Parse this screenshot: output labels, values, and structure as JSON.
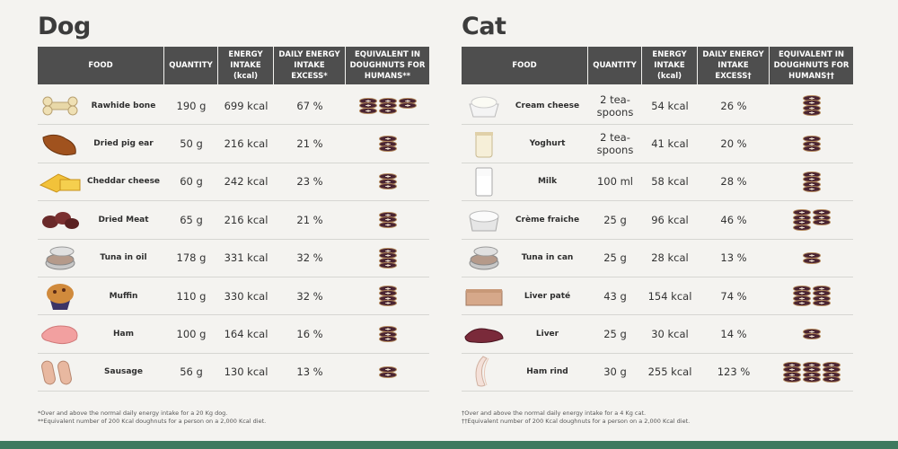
{
  "colors": {
    "header_bg": "#4e4e4e",
    "bottom_bar": "#3e7a5f",
    "donut": "#4a2432"
  },
  "columns": {
    "food": "FOOD",
    "quantity": "QUANTITY",
    "energy": "ENERGY INTAKE (kcal)",
    "dog_excess": "DAILY ENERGY INTAKE EXCESS*",
    "dog_equiv": "EQUIVALENT IN DOUGHNUTS FOR HUMANS**",
    "cat_excess": "DAILY ENERGY INTAKE EXCESS†",
    "cat_equiv": "EQUIVALENT IN DOUGHNUTS FOR HUMANS††"
  },
  "dog": {
    "title": "Dog",
    "rows": [
      {
        "food": "Rawhide bone",
        "icon": "rawhide-bone-icon",
        "quantity": "190 g",
        "energy": "699 kcal",
        "excess": "67 %",
        "donuts": [
          3,
          3,
          2
        ]
      },
      {
        "food": "Dried pig ear",
        "icon": "pig-ear-icon",
        "quantity": "50 g",
        "energy": "216 kcal",
        "excess": "21 %",
        "donuts": [
          3
        ]
      },
      {
        "food": "Cheddar cheese",
        "icon": "cheese-icon",
        "quantity": "60 g",
        "energy": "242 kcal",
        "excess": "23 %",
        "donuts": [
          3
        ]
      },
      {
        "food": "Dried Meat",
        "icon": "dried-meat-icon",
        "quantity": "65 g",
        "energy": "216 kcal",
        "excess": "21 %",
        "donuts": [
          3
        ]
      },
      {
        "food": "Tuna in oil",
        "icon": "tuna-can-icon",
        "quantity": "178 g",
        "energy": "331 kcal",
        "excess": "32 %",
        "donuts": [
          4
        ]
      },
      {
        "food": "Muffin",
        "icon": "muffin-icon",
        "quantity": "110 g",
        "energy": "330 kcal",
        "excess": "32 %",
        "donuts": [
          4
        ]
      },
      {
        "food": "Ham",
        "icon": "ham-icon",
        "quantity": "100 g",
        "energy": "164 kcal",
        "excess": "16 %",
        "donuts": [
          3
        ]
      },
      {
        "food": "Sausage",
        "icon": "sausage-icon",
        "quantity": "56 g",
        "energy": "130 kcal",
        "excess": "13 %",
        "donuts": [
          2
        ]
      }
    ],
    "notes": [
      "*Over and above the normal daily energy intake for a 20 Kg dog.",
      "**Equivalent number of 200 Kcal doughnuts for a person on a 2,000 Kcal diet."
    ]
  },
  "cat": {
    "title": "Cat",
    "rows": [
      {
        "food": "Cream cheese",
        "icon": "cream-cheese-icon",
        "quantity": "2 tea-spoons",
        "energy": "54 kcal",
        "excess": "26 %",
        "donuts": [
          4
        ]
      },
      {
        "food": "Yoghurt",
        "icon": "yoghurt-icon",
        "quantity": "2 tea-spoons",
        "energy": "41 kcal",
        "excess": "20 %",
        "donuts": [
          3
        ]
      },
      {
        "food": "Milk",
        "icon": "milk-icon",
        "quantity": "100 ml",
        "energy": "58 kcal",
        "excess": "28 %",
        "donuts": [
          4
        ]
      },
      {
        "food": "Crème fraiche",
        "icon": "creme-fraiche-icon",
        "quantity": "25 g",
        "energy": "96 kcal",
        "excess": "46 %",
        "donuts": [
          4,
          3
        ]
      },
      {
        "food": "Tuna in can",
        "icon": "tuna-can-icon",
        "quantity": "25 g",
        "energy": "28 kcal",
        "excess": "13 %",
        "donuts": [
          2
        ]
      },
      {
        "food": "Liver paté",
        "icon": "liver-pate-icon",
        "quantity": "43 g",
        "energy": "154 kcal",
        "excess": "74 %",
        "donuts": [
          4,
          4
        ]
      },
      {
        "food": "Liver",
        "icon": "liver-icon",
        "quantity": "25 g",
        "energy": "30 kcal",
        "excess": "14 %",
        "donuts": [
          2
        ]
      },
      {
        "food": "Ham rind",
        "icon": "ham-rind-icon",
        "quantity": "30 g",
        "energy": "255 kcal",
        "excess": "123 %",
        "donuts": [
          4,
          4,
          4
        ]
      }
    ],
    "notes": [
      "†Over and above the normal daily energy intake for a 4 Kg cat.",
      "††Equivalent number of 200 Kcal doughnuts for a person on a 2,000 Kcal diet."
    ]
  }
}
